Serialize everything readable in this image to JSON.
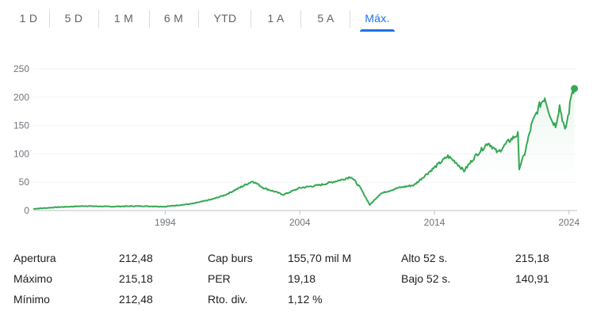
{
  "tabs": [
    "1 D",
    "5 D",
    "1 M",
    "6 M",
    "YTD",
    "1 A",
    "5 A",
    "Máx."
  ],
  "active_tab": "Máx.",
  "chart_data": {
    "type": "area",
    "title": "",
    "xlabel": "",
    "ylabel": "",
    "y_ticks": [
      "0",
      "50",
      "100",
      "150",
      "200",
      "250"
    ],
    "x_ticks": [
      "1994",
      "2004",
      "2014",
      "2024"
    ],
    "ylim": [
      0,
      250
    ],
    "xlim": [
      1984.2,
      2024.6
    ],
    "grid": true,
    "line_color": "#34a853",
    "series": [
      {
        "x": [
          1984.2,
          1986,
          1988,
          1990,
          1992,
          1994,
          1996,
          1997.5,
          1998.5,
          1999.5,
          2000.5,
          2001.3,
          2002.8,
          2004,
          2005.5,
          2007.2,
          2007.8,
          2008.5,
          2009.2,
          2010,
          2011.3,
          2012.5,
          2013.3,
          2014.2,
          2015,
          2015.6,
          2016.2,
          2017,
          2018,
          2018.7,
          2019.5,
          2020.2,
          2020.3,
          2020.7,
          2021.2,
          2021.8,
          2022.2,
          2022.7,
          2023,
          2023.3,
          2023.7,
          2024,
          2024.2,
          2024.4
        ],
        "y": [
          3,
          6,
          8,
          7,
          8,
          7,
          12,
          20,
          28,
          40,
          52,
          40,
          28,
          40,
          45,
          55,
          60,
          40,
          10,
          30,
          40,
          45,
          62,
          80,
          96,
          85,
          70,
          95,
          120,
          102,
          122,
          135,
          75,
          100,
          150,
          185,
          200,
          160,
          150,
          185,
          140,
          175,
          210,
          215.18
        ]
      }
    ]
  },
  "stats": {
    "col1": [
      {
        "label": "Apertura",
        "value": "212,48"
      },
      {
        "label": "Máximo",
        "value": "215,18"
      },
      {
        "label": "Mínimo",
        "value": "212,48"
      }
    ],
    "col2": [
      {
        "label": "Cap burs",
        "value": "155,70 mil M"
      },
      {
        "label": "PER",
        "value": "19,18"
      },
      {
        "label": "Rto. div.",
        "value": "1,12 %"
      }
    ],
    "col3": [
      {
        "label": "Alto 52 s.",
        "value": "215,18"
      },
      {
        "label": "Bajo 52 s.",
        "value": "140,91"
      }
    ]
  }
}
